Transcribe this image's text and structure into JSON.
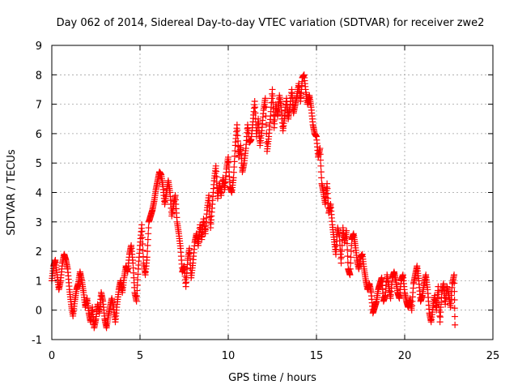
{
  "chart_data": {
    "type": "scatter",
    "title": "Day 062 of 2014, Sidereal Day-to-day VTEC variation (SDTVAR) for receiver zwe2",
    "xlabel": "GPS time / hours",
    "ylabel": "SDTVAR / TECUs",
    "xlim": [
      0,
      25
    ],
    "ylim": [
      -1,
      9
    ],
    "xticks": [
      0,
      5,
      10,
      15,
      20,
      25
    ],
    "yticks": [
      -1,
      0,
      1,
      2,
      3,
      4,
      5,
      6,
      7,
      8,
      9
    ],
    "grid": true,
    "marker": "+",
    "color": "#ff0000",
    "series": [
      {
        "name": "SDTVAR",
        "points": [
          [
            0.0,
            1.0
          ],
          [
            0.1,
            1.5
          ],
          [
            0.2,
            1.7
          ],
          [
            0.3,
            1.2
          ],
          [
            0.4,
            0.7
          ],
          [
            0.5,
            1.0
          ],
          [
            0.6,
            1.6
          ],
          [
            0.7,
            1.9
          ],
          [
            0.8,
            1.7
          ],
          [
            0.9,
            1.4
          ],
          [
            1.0,
            0.7
          ],
          [
            1.1,
            0.2
          ],
          [
            1.2,
            -0.2
          ],
          [
            1.3,
            0.3
          ],
          [
            1.4,
            0.7
          ],
          [
            1.5,
            0.9
          ],
          [
            1.6,
            1.3
          ],
          [
            1.7,
            1.0
          ],
          [
            1.8,
            0.6
          ],
          [
            1.9,
            0.1
          ],
          [
            2.0,
            0.4
          ],
          [
            2.1,
            -0.1
          ],
          [
            2.2,
            -0.4
          ],
          [
            2.3,
            0.1
          ],
          [
            2.4,
            -0.6
          ],
          [
            2.5,
            -0.3
          ],
          [
            2.6,
            0.2
          ],
          [
            2.7,
            -0.1
          ],
          [
            2.8,
            0.6
          ],
          [
            2.9,
            0.3
          ],
          [
            3.0,
            -0.3
          ],
          [
            3.1,
            -0.6
          ],
          [
            3.2,
            -0.2
          ],
          [
            3.3,
            0.1
          ],
          [
            3.4,
            0.4
          ],
          [
            3.5,
            0.1
          ],
          [
            3.6,
            -0.4
          ],
          [
            3.7,
            0.2
          ],
          [
            3.8,
            0.7
          ],
          [
            3.9,
            1.0
          ],
          [
            4.0,
            0.6
          ],
          [
            4.1,
            1.1
          ],
          [
            4.2,
            1.5
          ],
          [
            4.3,
            1.3
          ],
          [
            4.4,
            1.9
          ],
          [
            4.5,
            2.2
          ],
          [
            4.6,
            1.6
          ],
          [
            4.7,
            0.6
          ],
          [
            4.8,
            0.3
          ],
          [
            4.9,
            1.4
          ],
          [
            5.0,
            2.2
          ],
          [
            5.1,
            2.9
          ],
          [
            5.2,
            1.6
          ],
          [
            5.3,
            1.2
          ],
          [
            5.4,
            1.8
          ],
          [
            5.5,
            3.0
          ],
          [
            5.6,
            3.2
          ],
          [
            5.7,
            3.4
          ],
          [
            5.8,
            3.7
          ],
          [
            5.9,
            4.1
          ],
          [
            6.0,
            4.4
          ],
          [
            6.1,
            4.7
          ],
          [
            6.2,
            4.6
          ],
          [
            6.3,
            4.2
          ],
          [
            6.4,
            3.6
          ],
          [
            6.5,
            4.0
          ],
          [
            6.6,
            4.4
          ],
          [
            6.7,
            4.0
          ],
          [
            6.8,
            3.2
          ],
          [
            6.9,
            3.6
          ],
          [
            7.0,
            3.9
          ],
          [
            7.1,
            3.0
          ],
          [
            7.2,
            2.6
          ],
          [
            7.3,
            2.1
          ],
          [
            7.4,
            1.3
          ],
          [
            7.5,
            1.5
          ],
          [
            7.6,
            0.8
          ],
          [
            7.7,
            1.7
          ],
          [
            7.8,
            2.1
          ],
          [
            7.9,
            1.1
          ],
          [
            8.0,
            1.6
          ],
          [
            8.1,
            2.3
          ],
          [
            8.2,
            2.6
          ],
          [
            8.3,
            2.2
          ],
          [
            8.4,
            2.9
          ],
          [
            8.5,
            2.4
          ],
          [
            8.6,
            3.1
          ],
          [
            8.7,
            2.6
          ],
          [
            8.8,
            3.4
          ],
          [
            8.9,
            3.9
          ],
          [
            9.0,
            2.8
          ],
          [
            9.1,
            3.6
          ],
          [
            9.2,
            4.4
          ],
          [
            9.3,
            4.9
          ],
          [
            9.4,
            3.8
          ],
          [
            9.5,
            4.3
          ],
          [
            9.6,
            3.9
          ],
          [
            9.7,
            4.5
          ],
          [
            9.8,
            4.1
          ],
          [
            9.9,
            4.8
          ],
          [
            10.0,
            5.2
          ],
          [
            10.1,
            4.2
          ],
          [
            10.2,
            4.0
          ],
          [
            10.3,
            4.5
          ],
          [
            10.4,
            5.6
          ],
          [
            10.5,
            6.3
          ],
          [
            10.6,
            5.2
          ],
          [
            10.7,
            5.6
          ],
          [
            10.8,
            4.7
          ],
          [
            10.9,
            5.0
          ],
          [
            11.0,
            5.5
          ],
          [
            11.1,
            6.3
          ],
          [
            11.2,
            5.7
          ],
          [
            11.3,
            5.8
          ],
          [
            11.4,
            6.4
          ],
          [
            11.5,
            7.1
          ],
          [
            11.6,
            5.9
          ],
          [
            11.7,
            6.5
          ],
          [
            11.8,
            5.6
          ],
          [
            11.9,
            6.1
          ],
          [
            12.0,
            6.8
          ],
          [
            12.1,
            7.2
          ],
          [
            12.2,
            5.4
          ],
          [
            12.3,
            5.9
          ],
          [
            12.4,
            6.6
          ],
          [
            12.5,
            7.5
          ],
          [
            12.6,
            6.2
          ],
          [
            12.7,
            7.0
          ],
          [
            12.8,
            6.6
          ],
          [
            12.9,
            7.3
          ],
          [
            13.0,
            6.9
          ],
          [
            13.1,
            6.1
          ],
          [
            13.2,
            6.6
          ],
          [
            13.3,
            7.2
          ],
          [
            13.4,
            6.5
          ],
          [
            13.5,
            6.9
          ],
          [
            13.6,
            7.5
          ],
          [
            13.7,
            6.7
          ],
          [
            13.8,
            7.0
          ],
          [
            13.9,
            7.3
          ],
          [
            14.0,
            7.7
          ],
          [
            14.1,
            7.1
          ],
          [
            14.2,
            7.9
          ],
          [
            14.3,
            8.0
          ],
          [
            14.4,
            7.4
          ],
          [
            14.5,
            7.0
          ],
          [
            14.6,
            7.3
          ],
          [
            14.7,
            6.9
          ],
          [
            14.8,
            6.3
          ],
          [
            14.9,
            6.0
          ],
          [
            15.0,
            5.9
          ],
          [
            15.1,
            5.2
          ],
          [
            15.2,
            5.5
          ],
          [
            15.3,
            4.3
          ],
          [
            15.4,
            4.0
          ],
          [
            15.5,
            3.6
          ],
          [
            15.6,
            4.3
          ],
          [
            15.7,
            3.3
          ],
          [
            15.8,
            3.6
          ],
          [
            15.9,
            2.9
          ],
          [
            16.0,
            2.4
          ],
          [
            16.1,
            1.9
          ],
          [
            16.2,
            2.8
          ],
          [
            16.3,
            2.5
          ],
          [
            16.4,
            1.6
          ],
          [
            16.5,
            2.8
          ],
          [
            16.6,
            2.3
          ],
          [
            16.7,
            2.7
          ],
          [
            16.8,
            1.4
          ],
          [
            16.9,
            1.2
          ],
          [
            17.0,
            2.4
          ],
          [
            17.1,
            2.6
          ],
          [
            17.2,
            2.2
          ],
          [
            17.3,
            1.7
          ],
          [
            17.4,
            1.4
          ],
          [
            17.5,
            1.8
          ],
          [
            17.6,
            1.9
          ],
          [
            17.7,
            1.4
          ],
          [
            17.8,
            1.0
          ],
          [
            17.9,
            0.7
          ],
          [
            18.0,
            0.9
          ],
          [
            18.1,
            0.6
          ],
          [
            18.2,
            -0.1
          ],
          [
            18.3,
            0.1
          ],
          [
            18.4,
            0.3
          ],
          [
            18.5,
            0.7
          ],
          [
            18.6,
            0.9
          ],
          [
            18.7,
            1.1
          ],
          [
            18.8,
            0.3
          ],
          [
            18.9,
            0.5
          ],
          [
            19.0,
            1.2
          ],
          [
            19.1,
            0.8
          ],
          [
            19.2,
            0.4
          ],
          [
            19.3,
            1.1
          ],
          [
            19.4,
            1.3
          ],
          [
            19.5,
            1.0
          ],
          [
            19.6,
            0.6
          ],
          [
            19.7,
            0.4
          ],
          [
            19.8,
            1.0
          ],
          [
            19.9,
            1.2
          ],
          [
            20.0,
            0.6
          ],
          [
            20.1,
            0.3
          ],
          [
            20.2,
            0.1
          ],
          [
            20.3,
            0.4
          ],
          [
            20.4,
            0.0
          ],
          [
            20.5,
            0.9
          ],
          [
            20.6,
            1.2
          ],
          [
            20.7,
            1.5
          ],
          [
            20.8,
            1.0
          ],
          [
            20.9,
            0.3
          ],
          [
            21.0,
            0.5
          ],
          [
            21.1,
            0.9
          ],
          [
            21.2,
            1.2
          ],
          [
            21.3,
            0.7
          ],
          [
            21.4,
            -0.1
          ],
          [
            21.5,
            -0.4
          ],
          [
            21.6,
            0.1
          ],
          [
            21.7,
            0.5
          ],
          [
            21.8,
            0.0
          ],
          [
            21.9,
            0.8
          ],
          [
            22.0,
            -0.4
          ],
          [
            22.1,
            0.6
          ],
          [
            22.2,
            0.9
          ],
          [
            22.3,
            0.2
          ],
          [
            22.4,
            0.8
          ],
          [
            22.5,
            0.5
          ],
          [
            22.6,
            0.1
          ],
          [
            22.7,
            0.9
          ],
          [
            22.8,
            1.2
          ],
          [
            22.85,
            -0.5
          ]
        ]
      }
    ]
  }
}
